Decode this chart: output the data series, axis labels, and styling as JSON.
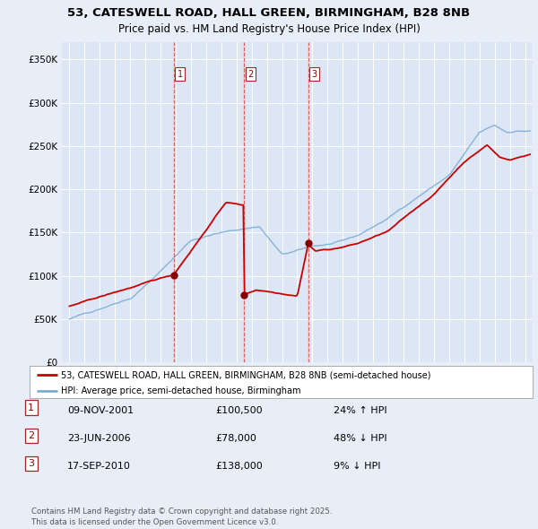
{
  "title_line1": "53, CATESWELL ROAD, HALL GREEN, BIRMINGHAM, B28 8NB",
  "title_line2": "Price paid vs. HM Land Registry's House Price Index (HPI)",
  "bg_color": "#e8eef8",
  "plot_bg_color": "#dce6f5",
  "sale_color": "#cc0000",
  "hpi_color": "#7eadd4",
  "sale_label": "53, CATESWELL ROAD, HALL GREEN, BIRMINGHAM, B28 8NB (semi-detached house)",
  "hpi_label": "HPI: Average price, semi-detached house, Birmingham",
  "transactions": [
    {
      "num": 1,
      "date": "09-NOV-2001",
      "price": 100500,
      "pct": "24%",
      "dir": "↑",
      "x_year": 2001.86
    },
    {
      "num": 2,
      "date": "23-JUN-2006",
      "price": 78000,
      "pct": "48%",
      "dir": "↓",
      "x_year": 2006.47
    },
    {
      "num": 3,
      "date": "17-SEP-2010",
      "price": 138000,
      "pct": "9%",
      "dir": "↓",
      "x_year": 2010.71
    }
  ],
  "footer": "Contains HM Land Registry data © Crown copyright and database right 2025.\nThis data is licensed under the Open Government Licence v3.0.",
  "ylim": [
    0,
    370000
  ],
  "xlim": [
    1994.5,
    2025.5
  ],
  "yticks": [
    0,
    50000,
    100000,
    150000,
    200000,
    250000,
    300000,
    350000
  ],
  "ytick_labels": [
    "£0",
    "£50K",
    "£100K",
    "£150K",
    "£200K",
    "£250K",
    "£300K",
    "£350K"
  ]
}
